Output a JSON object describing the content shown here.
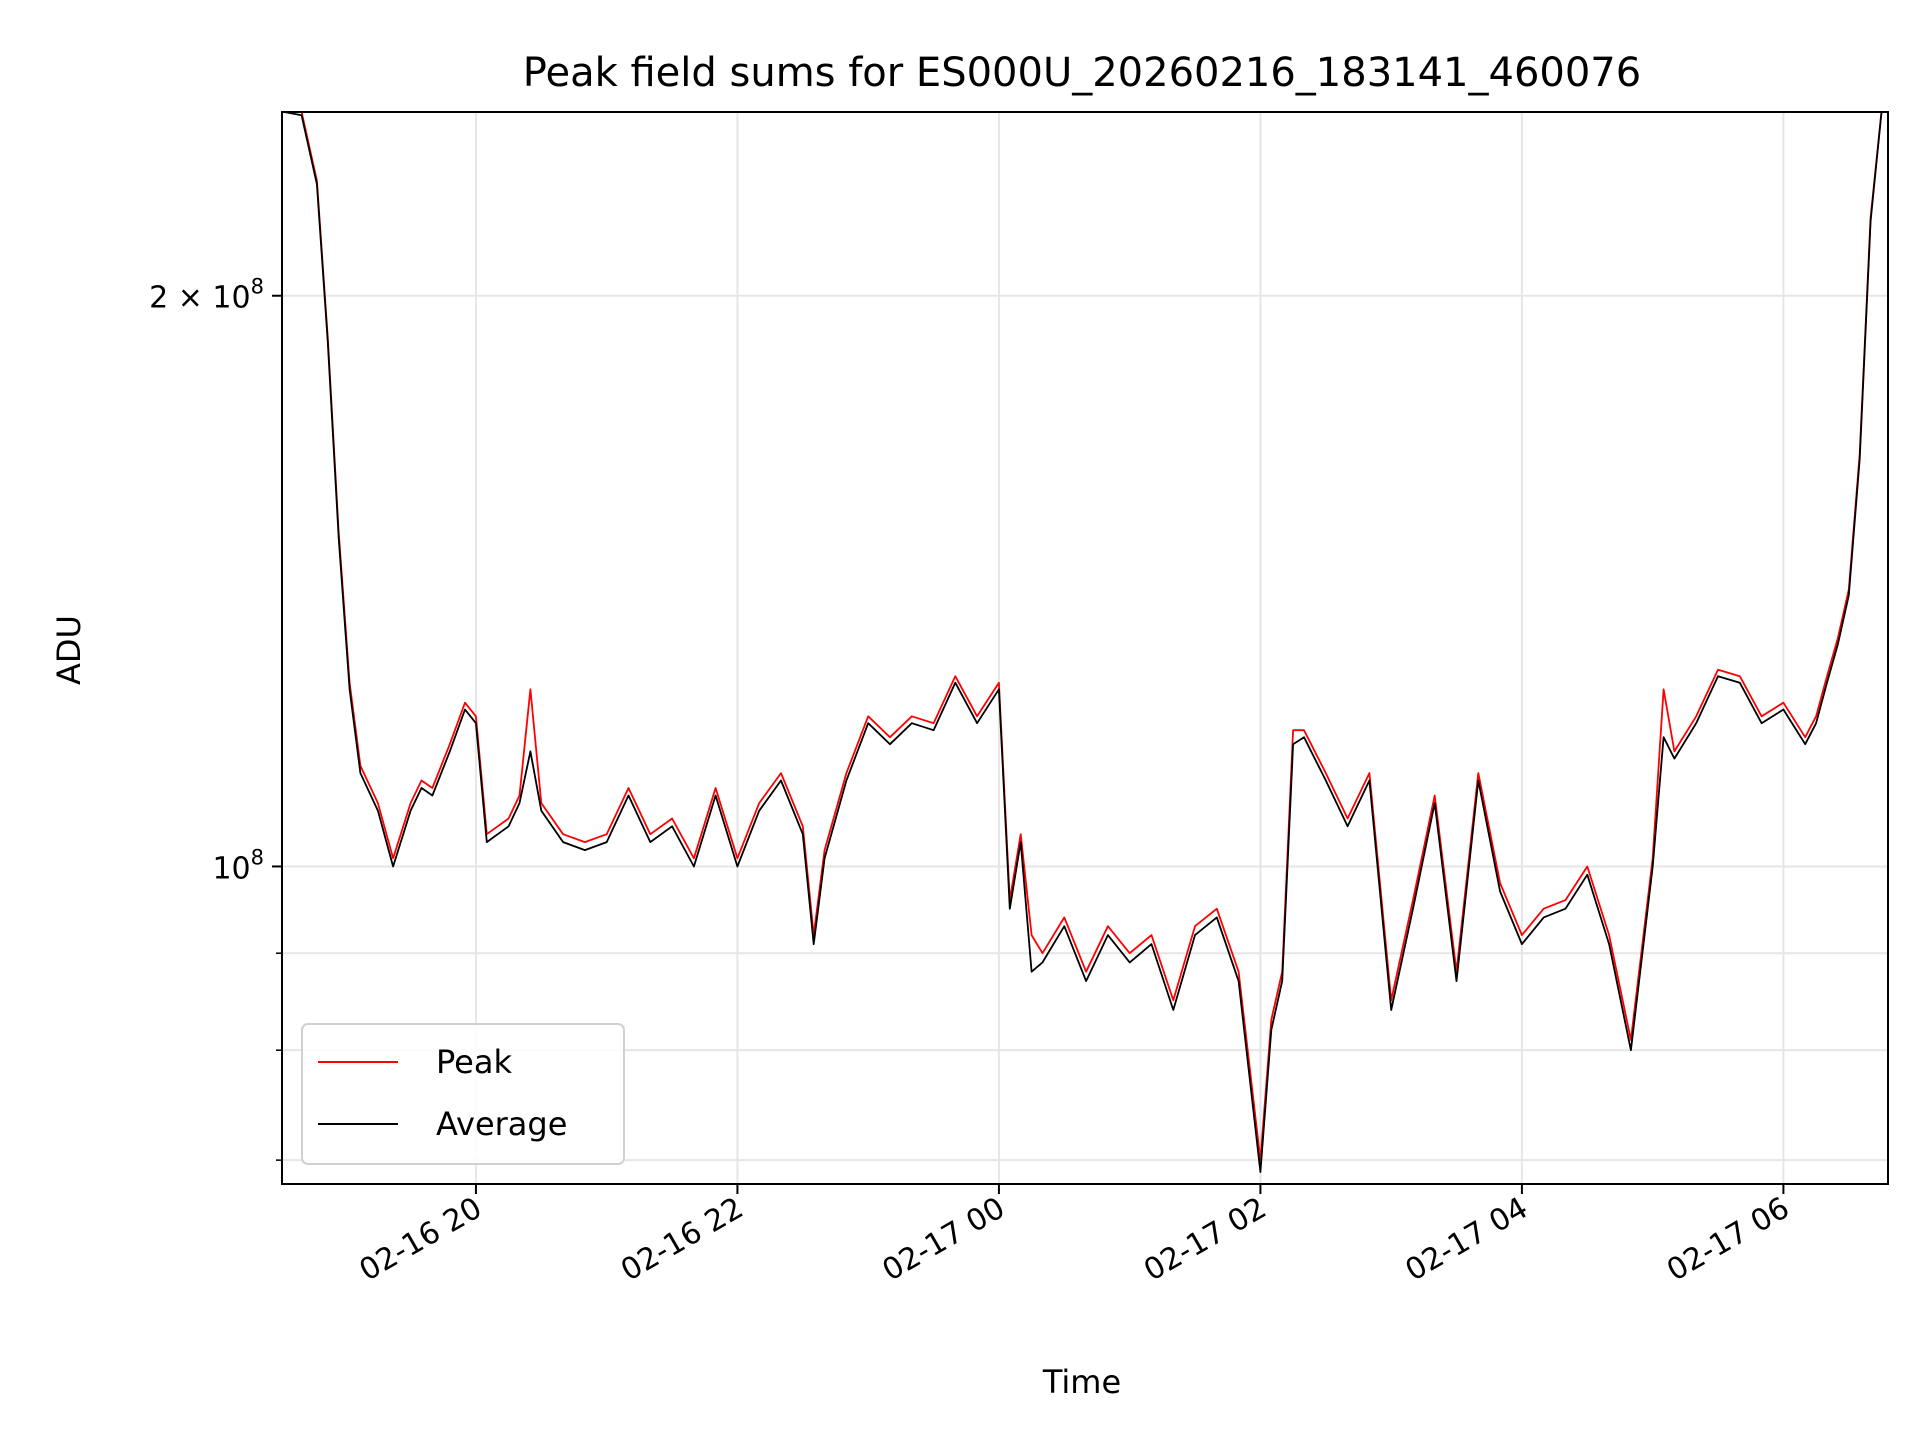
{
  "chart_data": {
    "type": "line",
    "title": "Peak field sums for ES000U_20260216_183141_460076",
    "xlabel": "Time",
    "ylabel": "ADU",
    "yscale": "log",
    "xlim": [
      "02-16 18:31",
      "02-17 06:48"
    ],
    "ylim": [
      68000000,
      250000000
    ],
    "grid": true,
    "legend_position": "lower-left",
    "x_ticks": [
      "02-16 20",
      "02-16 22",
      "02-17 00",
      "02-17 02",
      "02-17 04",
      "02-17 06"
    ],
    "y_ticks": [
      {
        "value": 100000000,
        "label": "10",
        "exp": "8",
        "prefix": ""
      },
      {
        "value": 200000000,
        "label": "10",
        "exp": "8",
        "prefix": "2 × "
      }
    ],
    "x": [
      "18:32",
      "18:40",
      "18:47",
      "18:52",
      "18:57",
      "19:02",
      "19:07",
      "19:15",
      "19:22",
      "19:30",
      "19:35",
      "19:40",
      "19:48",
      "19:55",
      "20:00",
      "20:05",
      "20:10",
      "20:15",
      "20:20",
      "20:25",
      "20:30",
      "20:40",
      "20:50",
      "21:00",
      "21:10",
      "21:20",
      "21:30",
      "21:40",
      "21:50",
      "22:00",
      "22:10",
      "22:20",
      "22:30",
      "22:35",
      "22:40",
      "22:50",
      "23:00",
      "23:10",
      "23:20",
      "23:30",
      "23:40",
      "23:50",
      "00:00",
      "00:05",
      "00:10",
      "00:15",
      "00:20",
      "00:30",
      "00:40",
      "00:50",
      "01:00",
      "01:10",
      "01:20",
      "01:30",
      "01:40",
      "01:50",
      "02:00",
      "02:05",
      "02:10",
      "02:15",
      "02:20",
      "02:30",
      "02:40",
      "02:50",
      "03:00",
      "03:10",
      "03:20",
      "03:30",
      "03:40",
      "03:50",
      "04:00",
      "04:10",
      "04:20",
      "04:30",
      "04:40",
      "04:50",
      "05:00",
      "05:05",
      "05:10",
      "05:20",
      "05:30",
      "05:40",
      "05:50",
      "06:00",
      "06:10",
      "06:15",
      "06:20",
      "06:25",
      "06:30",
      "06:35",
      "06:40",
      "06:45"
    ],
    "series": [
      {
        "name": "Peak",
        "color": "#ff0000",
        "values": [
          255,
          250,
          230,
          190,
          150,
          125,
          113,
          108,
          101,
          108,
          111,
          110,
          116,
          122,
          120,
          104,
          105,
          106,
          109,
          124,
          108,
          104,
          103,
          104,
          110,
          104,
          106,
          101,
          110,
          101,
          108,
          112,
          105,
          92,
          102,
          112,
          120,
          117,
          120,
          119,
          126,
          120,
          125,
          96,
          104,
          92,
          90,
          94,
          88,
          93,
          90,
          92,
          85,
          93,
          95,
          88,
          70,
          83,
          88,
          118,
          118,
          112,
          106,
          112,
          85,
          96,
          109,
          88,
          112,
          98,
          92,
          95,
          96,
          100,
          92,
          81,
          101,
          124,
          115,
          120,
          127,
          126,
          120,
          122,
          117,
          120,
          126,
          132,
          140,
          165,
          220,
          255
        ]
      },
      {
        "name": "Average",
        "color": "#000000",
        "values": [
          254,
          249,
          229,
          189,
          149,
          124,
          112,
          107,
          100,
          107,
          110,
          109,
          115,
          121,
          119,
          103,
          104,
          105,
          108,
          115,
          107,
          103,
          102,
          103,
          109,
          103,
          105,
          100,
          109,
          100,
          107,
          111,
          104,
          91,
          101,
          111,
          119,
          116,
          119,
          118,
          125,
          119,
          124,
          95,
          103,
          88,
          89,
          93,
          87,
          92,
          89,
          91,
          84,
          92,
          94,
          87,
          69,
          82,
          87,
          116,
          117,
          111,
          105,
          111,
          84,
          95,
          108,
          87,
          111,
          97,
          91,
          94,
          95,
          99,
          91,
          80,
          100,
          117,
          114,
          119,
          126,
          125,
          119,
          121,
          116,
          119,
          125,
          131,
          139,
          164,
          219,
          254
        ]
      }
    ]
  }
}
